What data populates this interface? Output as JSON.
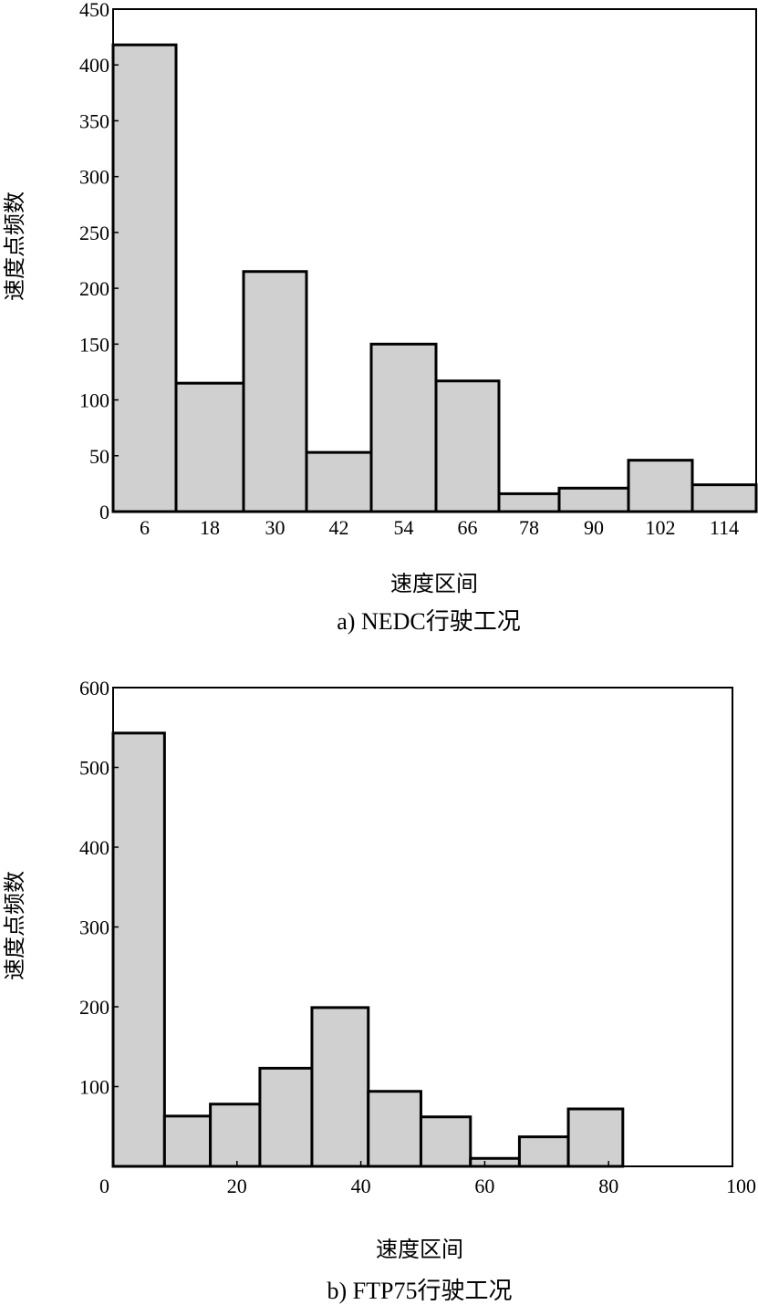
{
  "chart_data": [
    {
      "type": "bar",
      "categories": [
        "6",
        "18",
        "30",
        "42",
        "54",
        "66",
        "78",
        "90",
        "102",
        "114"
      ],
      "values": [
        418,
        115,
        215,
        53,
        150,
        117,
        16,
        21,
        46,
        24
      ],
      "xlabel": "速度区间",
      "ylabel": "速度点频数",
      "ylim": [
        0,
        450
      ],
      "yticks": [
        "0",
        "50",
        "100",
        "150",
        "200",
        "250",
        "300",
        "350",
        "400",
        "450"
      ],
      "caption": "a) NEDC行驶工况",
      "bar_color": "#d0d0d0",
      "grid": false
    },
    {
      "type": "bar",
      "bins": [
        [
          0,
          8.3
        ],
        [
          8.3,
          15.7
        ],
        [
          15.7,
          23.7
        ],
        [
          23.7,
          32.1
        ],
        [
          32.1,
          41.2
        ],
        [
          41.2,
          49.7
        ],
        [
          49.7,
          57.7
        ],
        [
          57.7,
          65.6
        ],
        [
          65.6,
          73.5
        ],
        [
          73.5,
          82.3
        ]
      ],
      "values": [
        543,
        63,
        78,
        123,
        199,
        94,
        62,
        10,
        37,
        72
      ],
      "xlabel": "速度区间",
      "ylabel": "速度点频数",
      "xlim": [
        0,
        100
      ],
      "ylim": [
        0,
        600
      ],
      "xticks": [
        "0",
        "20",
        "40",
        "60",
        "80",
        "100"
      ],
      "yticks": [
        "100",
        "200",
        "300",
        "400",
        "500",
        "600"
      ],
      "caption": "b) FTP75行驶工况",
      "bar_color": "#d0d0d0",
      "grid": false
    }
  ]
}
